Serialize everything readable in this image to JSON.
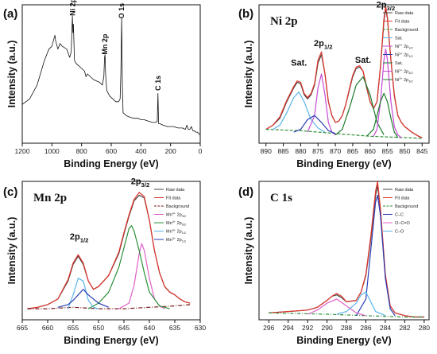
{
  "chart_data": [
    {
      "panel": "(a)",
      "title": "",
      "type": "line",
      "xlabel": "Binding Energy (eV)",
      "ylabel": "Intensity (a.u.)",
      "xlim": [
        1200,
        0
      ],
      "xticks": [
        1200,
        1000,
        800,
        600,
        400,
        200,
        0
      ],
      "ylim": [
        0,
        1
      ],
      "annotations": [
        {
          "text": "Ni 2p",
          "x": 860,
          "y": 0.92
        },
        {
          "text": "Mn 2p",
          "x": 642,
          "y": 0.64
        },
        {
          "text": "O 1s",
          "x": 530,
          "y": 0.9
        },
        {
          "text": "C 1s",
          "x": 285,
          "y": 0.38
        }
      ],
      "series": [
        {
          "name": "",
          "color": "#111111",
          "x": [
            1200,
            1150,
            1100,
            1050,
            1020,
            1000,
            990,
            980,
            975,
            960,
            945,
            930,
            900,
            880,
            870,
            862,
            858,
            855,
            848,
            840,
            820,
            800,
            780,
            770,
            760,
            740,
            720,
            700,
            680,
            660,
            650,
            645,
            642,
            638,
            630,
            610,
            590,
            570,
            550,
            540,
            535,
            530,
            525,
            520,
            500,
            480,
            450,
            420,
            400,
            380,
            350,
            320,
            300,
            290,
            285,
            282,
            280,
            270,
            250,
            220,
            200,
            180,
            150,
            120,
            100,
            90,
            80,
            70,
            60,
            50,
            40,
            30,
            20,
            10,
            0
          ],
          "y": [
            0.28,
            0.32,
            0.42,
            0.6,
            0.68,
            0.7,
            0.74,
            0.78,
            0.74,
            0.68,
            0.72,
            0.7,
            0.68,
            0.62,
            0.66,
            0.92,
            0.8,
            0.86,
            0.6,
            0.58,
            0.56,
            0.54,
            0.52,
            0.48,
            0.5,
            0.48,
            0.46,
            0.45,
            0.44,
            0.42,
            0.48,
            0.62,
            0.64,
            0.5,
            0.38,
            0.34,
            0.32,
            0.3,
            0.3,
            0.32,
            0.5,
            0.9,
            0.42,
            0.22,
            0.2,
            0.19,
            0.18,
            0.18,
            0.17,
            0.17,
            0.16,
            0.15,
            0.15,
            0.16,
            0.36,
            0.2,
            0.14,
            0.14,
            0.13,
            0.12,
            0.12,
            0.12,
            0.11,
            0.11,
            0.1,
            0.13,
            0.1,
            0.1,
            0.12,
            0.09,
            0.09,
            0.08,
            0.08,
            0.07,
            0.06
          ]
        }
      ]
    },
    {
      "panel": "(b)",
      "title": "Ni 2p",
      "type": "line",
      "xlabel": "Binding Energy (eV)",
      "ylabel": "Intensity (a.u.)",
      "xlim": [
        892,
        843
      ],
      "xticks": [
        890,
        885,
        880,
        875,
        870,
        865,
        860,
        855,
        850,
        845
      ],
      "ylim": [
        0,
        1
      ],
      "annotations": [
        {
          "text": "Sat.",
          "x": 880.5,
          "y": 0.56
        },
        {
          "text": "2p1/2",
          "x": 873.5,
          "y": 0.7
        },
        {
          "text": "Sat.",
          "x": 862,
          "y": 0.58
        },
        {
          "text": "2p3/2",
          "x": 855.5,
          "y": 0.98
        }
      ],
      "legend": [
        "Raw data",
        "Fit data",
        "Background",
        "Sat.",
        "Ni2+ 2p1/2",
        "Ni3+ 2p1/2",
        "Sat.",
        "Ni2+ 2p3/2",
        "Ni3+ 2p3/2"
      ],
      "series": [
        {
          "name": "Raw data",
          "color": "#444444",
          "x": [
            890,
            888,
            886,
            884,
            882,
            881,
            880,
            879,
            878,
            877,
            876,
            875,
            874,
            873,
            872,
            871,
            870,
            869,
            868,
            867,
            866,
            865,
            864,
            863,
            862,
            861,
            860,
            859,
            858,
            857,
            856,
            855.5,
            855,
            854,
            853,
            852,
            851,
            850,
            848,
            846,
            845
          ],
          "y": [
            0.1,
            0.13,
            0.18,
            0.3,
            0.4,
            0.44,
            0.43,
            0.35,
            0.32,
            0.35,
            0.42,
            0.58,
            0.64,
            0.5,
            0.3,
            0.2,
            0.15,
            0.16,
            0.2,
            0.28,
            0.38,
            0.48,
            0.54,
            0.55,
            0.52,
            0.4,
            0.3,
            0.25,
            0.3,
            0.55,
            0.88,
            0.97,
            0.9,
            0.6,
            0.35,
            0.2,
            0.15,
            0.12,
            0.08,
            0.05,
            0.04
          ]
        },
        {
          "name": "Fit data",
          "color": "#e0352b",
          "x": [
            890,
            888,
            886,
            884,
            882,
            881,
            880,
            879,
            878,
            877,
            876,
            875,
            874,
            873,
            872,
            871,
            870,
            869,
            868,
            867,
            866,
            865,
            864,
            863,
            862,
            861,
            860,
            859,
            858,
            857,
            856,
            855.5,
            855,
            854,
            853,
            852,
            851,
            850,
            848,
            846,
            845
          ],
          "y": [
            0.1,
            0.13,
            0.19,
            0.31,
            0.41,
            0.45,
            0.44,
            0.36,
            0.33,
            0.36,
            0.43,
            0.6,
            0.66,
            0.5,
            0.3,
            0.2,
            0.15,
            0.16,
            0.2,
            0.28,
            0.39,
            0.49,
            0.55,
            0.56,
            0.52,
            0.41,
            0.3,
            0.25,
            0.3,
            0.56,
            0.9,
            0.99,
            0.91,
            0.6,
            0.34,
            0.2,
            0.15,
            0.12,
            0.08,
            0.05,
            0.04
          ]
        },
        {
          "name": "Background",
          "color": "#2f8f3a",
          "dash": "4,2",
          "x": [
            890,
            880,
            870,
            860,
            850,
            845
          ],
          "y": [
            0.1,
            0.09,
            0.07,
            0.05,
            0.04,
            0.035
          ]
        },
        {
          "name": "Sat.",
          "color": "#5ab4e8",
          "x": [
            888,
            886,
            884,
            882,
            880.5,
            879,
            877,
            875,
            873
          ],
          "y": [
            0.1,
            0.13,
            0.22,
            0.33,
            0.37,
            0.3,
            0.17,
            0.11,
            0.08
          ]
        },
        {
          "name": "Ni2+ 2p1/2",
          "color": "#c44bd4",
          "x": [
            878,
            876,
            875,
            874,
            873,
            872,
            871,
            870
          ],
          "y": [
            0.08,
            0.2,
            0.4,
            0.5,
            0.35,
            0.15,
            0.08,
            0.06
          ]
        },
        {
          "name": "Ni3+ 2p1/2",
          "color": "#2a3fb5",
          "x": [
            882,
            880,
            878,
            876,
            874,
            872,
            870
          ],
          "y": [
            0.08,
            0.1,
            0.17,
            0.2,
            0.15,
            0.09,
            0.07
          ]
        },
        {
          "name": "Sat.",
          "color": "#1f7a2e",
          "x": [
            870,
            868,
            866,
            864,
            862,
            860,
            858,
            856
          ],
          "y": [
            0.06,
            0.1,
            0.25,
            0.42,
            0.48,
            0.35,
            0.15,
            0.06
          ]
        },
        {
          "name": "Ni2+ 2p3/2",
          "color": "#c44bd4",
          "x": [
            859,
            858,
            857,
            856,
            855.5,
            855,
            854,
            853,
            852,
            851
          ],
          "y": [
            0.05,
            0.1,
            0.3,
            0.6,
            0.68,
            0.6,
            0.3,
            0.12,
            0.06,
            0.04
          ]
        },
        {
          "name": "Ni3+ 2p3/2",
          "color": "#1c7d2a",
          "x": [
            861,
            859,
            858,
            857,
            856,
            855,
            854,
            853,
            852
          ],
          "y": [
            0.05,
            0.1,
            0.2,
            0.3,
            0.36,
            0.3,
            0.18,
            0.08,
            0.04
          ]
        }
      ]
    },
    {
      "panel": "(c)",
      "title": "Mn 2p",
      "type": "line",
      "xlabel": "Binding Energy (eV)",
      "ylabel": "Intensity (a.u.)",
      "xlim": [
        665,
        630
      ],
      "xticks": [
        665,
        660,
        655,
        650,
        645,
        640,
        635,
        630
      ],
      "ylim": [
        0,
        1
      ],
      "annotations": [
        {
          "text": "2p1/2",
          "x": 653.8,
          "y": 0.58
        },
        {
          "text": "2p3/2",
          "x": 641.8,
          "y": 0.98
        }
      ],
      "legend": [
        "Raw data",
        "Fit data",
        "Background",
        "Mn4+ 2p3/2",
        "Mn3+ 2p3/2",
        "Mn4+ 2p1/2",
        "Mn3+ 2p1/2"
      ],
      "series": [
        {
          "name": "Raw data",
          "color": "#444444",
          "x": [
            664,
            662,
            660,
            658,
            656,
            655,
            654,
            653,
            652,
            651,
            650,
            648,
            646,
            645,
            644,
            643,
            642,
            641,
            640,
            639,
            638,
            637,
            636,
            635,
            634,
            633,
            632
          ],
          "y": [
            0.08,
            0.09,
            0.11,
            0.15,
            0.28,
            0.4,
            0.46,
            0.4,
            0.28,
            0.22,
            0.24,
            0.32,
            0.48,
            0.62,
            0.75,
            0.86,
            0.9,
            0.88,
            0.72,
            0.5,
            0.34,
            0.24,
            0.2,
            0.18,
            0.15,
            0.13,
            0.12
          ]
        },
        {
          "name": "Fit data",
          "color": "#e0352b",
          "x": [
            664,
            662,
            660,
            658,
            656,
            655,
            654,
            653,
            652,
            651,
            650,
            648,
            646,
            645,
            644,
            643,
            642,
            641,
            640,
            639,
            638,
            637,
            636,
            635,
            634,
            633,
            632
          ],
          "y": [
            0.08,
            0.09,
            0.11,
            0.15,
            0.29,
            0.41,
            0.47,
            0.41,
            0.28,
            0.22,
            0.24,
            0.32,
            0.49,
            0.63,
            0.76,
            0.87,
            0.92,
            0.89,
            0.72,
            0.5,
            0.34,
            0.24,
            0.2,
            0.18,
            0.15,
            0.13,
            0.12
          ]
        },
        {
          "name": "Background",
          "color": "#7a1a1a",
          "dash": "5,2,1,2",
          "x": [
            664,
            660,
            655,
            650,
            645,
            640,
            635,
            632
          ],
          "y": [
            0.08,
            0.08,
            0.09,
            0.08,
            0.08,
            0.09,
            0.1,
            0.11
          ]
        },
        {
          "name": "Mn4+ 2p3/2",
          "color": "#e060c8",
          "x": [
            646,
            644,
            643,
            642,
            641.5,
            641,
            640,
            639,
            638,
            637
          ],
          "y": [
            0.08,
            0.12,
            0.25,
            0.48,
            0.55,
            0.5,
            0.3,
            0.15,
            0.1,
            0.08
          ]
        },
        {
          "name": "Mn3+ 2p3/2",
          "color": "#2a8f3a",
          "x": [
            652,
            650,
            648,
            646,
            645,
            644,
            643.5,
            643,
            642,
            641,
            640,
            638,
            636
          ],
          "y": [
            0.08,
            0.12,
            0.2,
            0.38,
            0.52,
            0.66,
            0.68,
            0.64,
            0.5,
            0.34,
            0.2,
            0.1,
            0.08
          ]
        },
        {
          "name": "Mn4+ 2p1/2",
          "color": "#5ab4e8",
          "x": [
            656,
            655,
            654,
            653,
            652,
            651,
            650
          ],
          "y": [
            0.08,
            0.18,
            0.3,
            0.28,
            0.14,
            0.09,
            0.08
          ]
        },
        {
          "name": "Mn3+ 2p1/2",
          "color": "#2a3fb5",
          "x": [
            658,
            656,
            655,
            654,
            653,
            652,
            650,
            648
          ],
          "y": [
            0.09,
            0.11,
            0.14,
            0.18,
            0.22,
            0.18,
            0.12,
            0.09
          ]
        }
      ]
    },
    {
      "panel": "(d)",
      "title": "C 1s",
      "type": "line",
      "xlabel": "Binding Energy (eV)",
      "ylabel": "Intensity (a.u.)",
      "xlim": [
        297,
        279.5
      ],
      "xticks": [
        296,
        294,
        292,
        290,
        288,
        286,
        284,
        282,
        280
      ],
      "ylim": [
        0,
        1
      ],
      "legend": [
        "Raw data",
        "Fit data",
        "Background",
        "C–C",
        "O–C=O",
        "C–O"
      ],
      "series": [
        {
          "name": "Raw data",
          "color": "#444444",
          "x": [
            296,
            294,
            292,
            291,
            290,
            289.5,
            289,
            288.5,
            288,
            287,
            286.5,
            286,
            285.5,
            285,
            284.8,
            284.5,
            284,
            283.5,
            283,
            282,
            281,
            280
          ],
          "y": [
            0.05,
            0.06,
            0.07,
            0.09,
            0.14,
            0.17,
            0.18,
            0.16,
            0.13,
            0.14,
            0.2,
            0.32,
            0.58,
            0.9,
            0.97,
            0.78,
            0.32,
            0.1,
            0.05,
            0.03,
            0.02,
            0.02
          ]
        },
        {
          "name": "Fit data",
          "color": "#e0352b",
          "x": [
            296,
            294,
            292,
            291,
            290,
            289.5,
            289,
            288.5,
            288,
            287,
            286.5,
            286,
            285.5,
            285,
            284.8,
            284.5,
            284,
            283.5,
            283,
            282,
            281,
            280
          ],
          "y": [
            0.05,
            0.06,
            0.07,
            0.09,
            0.14,
            0.17,
            0.19,
            0.17,
            0.13,
            0.14,
            0.2,
            0.33,
            0.6,
            0.93,
            1.0,
            0.8,
            0.33,
            0.1,
            0.05,
            0.03,
            0.02,
            0.02
          ]
        },
        {
          "name": "Background",
          "color": "#2a8f3a",
          "dash": "4,2,1,2",
          "x": [
            296,
            290,
            286,
            284,
            282,
            280
          ],
          "y": [
            0.05,
            0.04,
            0.03,
            0.025,
            0.02,
            0.02
          ]
        },
        {
          "name": "C–C",
          "color": "#2a3fb5",
          "x": [
            287,
            286,
            285.5,
            285,
            284.8,
            284.5,
            284,
            283.5,
            283
          ],
          "y": [
            0.03,
            0.15,
            0.5,
            0.85,
            0.9,
            0.75,
            0.3,
            0.08,
            0.03
          ]
        },
        {
          "name": "O–C=O",
          "color": "#e060c8",
          "x": [
            292,
            291,
            290,
            289,
            288,
            287,
            286
          ],
          "y": [
            0.04,
            0.07,
            0.12,
            0.15,
            0.1,
            0.05,
            0.03
          ]
        },
        {
          "name": "C–O",
          "color": "#5ab4e8",
          "x": [
            289,
            288,
            287,
            286.5,
            286,
            285.5,
            285,
            284
          ],
          "y": [
            0.04,
            0.06,
            0.12,
            0.18,
            0.2,
            0.13,
            0.06,
            0.03
          ]
        }
      ]
    }
  ]
}
